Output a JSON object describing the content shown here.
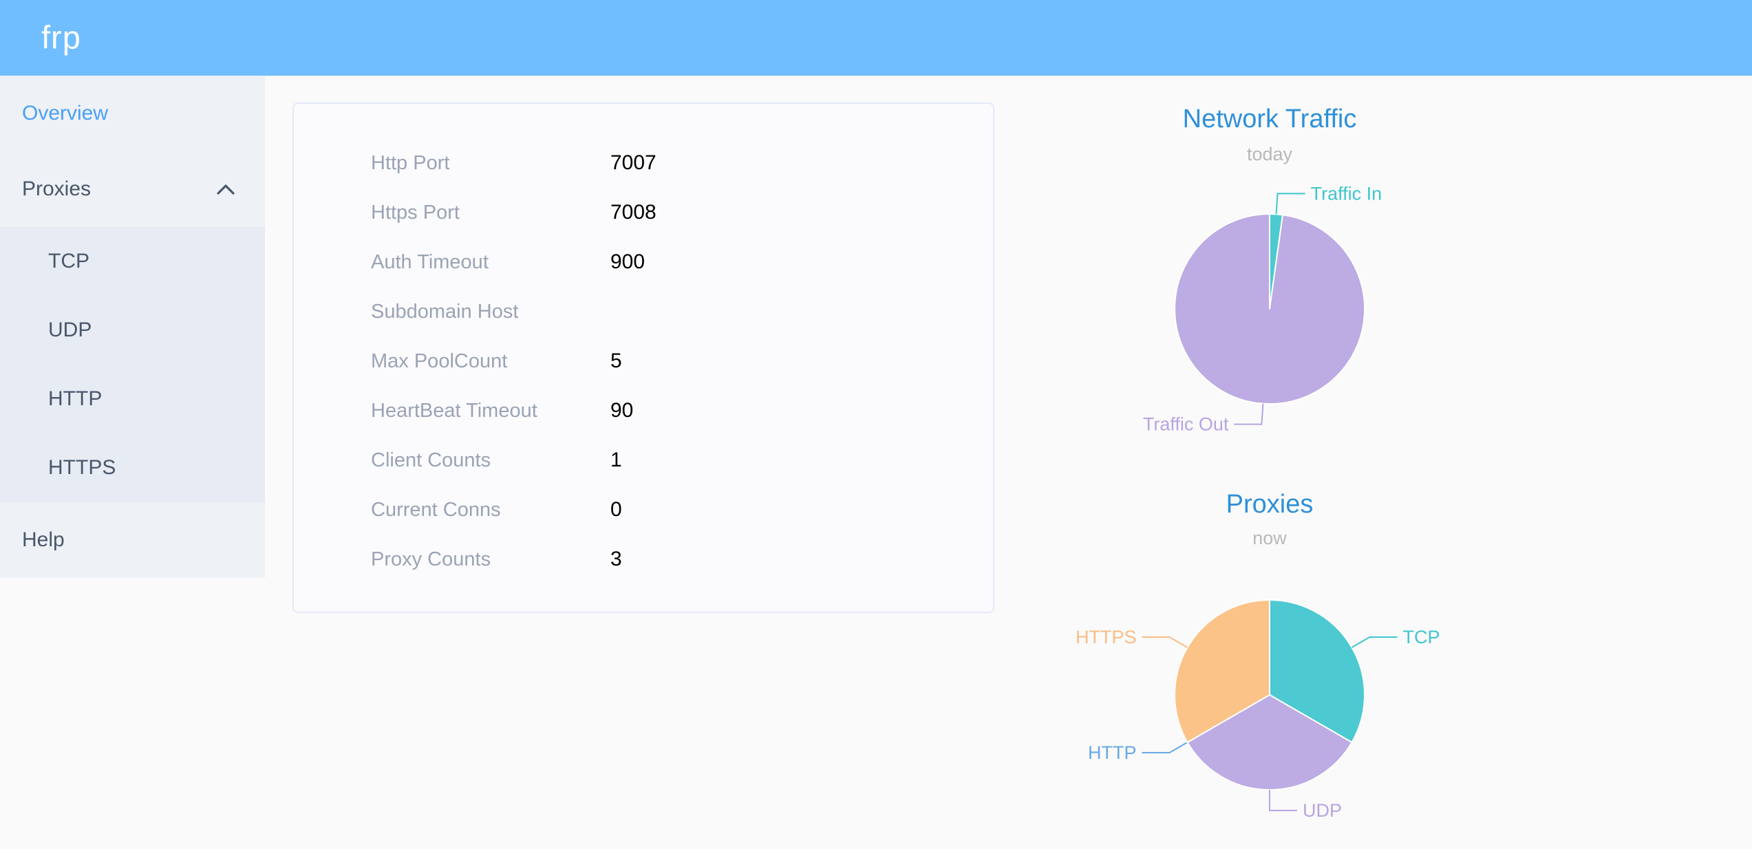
{
  "header": {
    "logo": "frp",
    "background_color": "#70bdff"
  },
  "sidebar": {
    "items": [
      {
        "label": "Overview",
        "active": true
      },
      {
        "label": "Proxies",
        "expanded": true,
        "children": [
          {
            "label": "TCP"
          },
          {
            "label": "UDP"
          },
          {
            "label": "HTTP"
          },
          {
            "label": "HTTPS"
          }
        ]
      },
      {
        "label": "Help",
        "active": false
      }
    ],
    "active_color": "#4aa0f6",
    "text_color": "#48576a"
  },
  "overview_card": {
    "rows": [
      {
        "label": "Http Port",
        "value": "7007"
      },
      {
        "label": "Https Port",
        "value": "7008"
      },
      {
        "label": "Auth Timeout",
        "value": "900"
      },
      {
        "label": "Subdomain Host",
        "value": ""
      },
      {
        "label": "Max PoolCount",
        "value": "5"
      },
      {
        "label": "HeartBeat Timeout",
        "value": "90"
      },
      {
        "label": "Client Counts",
        "value": "1"
      },
      {
        "label": "Current Conns",
        "value": "0"
      },
      {
        "label": "Proxy Counts",
        "value": "3"
      }
    ],
    "label_color": "#9aa3b5",
    "value_color": "#000000"
  },
  "chart_data": [
    {
      "type": "pie",
      "title": "Network Traffic",
      "subtitle": "today",
      "title_color": "#2e90d9",
      "subtitle_color": "#b8b8b8",
      "legend_position": "callout-labels",
      "value_unit": "percent (estimated from pixels; byte values not shown)",
      "slices": [
        {
          "name": "Traffic In",
          "value": 2.2,
          "color": "#4dc9d1",
          "label_color": "#3fc6cd"
        },
        {
          "name": "Traffic Out",
          "value": 97.8,
          "color": "#bdabe3",
          "label_color": "#b7a4e3"
        }
      ]
    },
    {
      "type": "pie",
      "title": "Proxies",
      "subtitle": "now",
      "title_color": "#2e90d9",
      "subtitle_color": "#b8b8b8",
      "legend_position": "callout-labels",
      "value_unit": "proxy count",
      "slices": [
        {
          "name": "TCP",
          "value": 1,
          "color": "#4dc9d1",
          "label_color": "#3fc6cd"
        },
        {
          "name": "UDP",
          "value": 1,
          "color": "#bdabe3",
          "label_color": "#b7a4e3"
        },
        {
          "name": "HTTP",
          "value": 0,
          "color": "#6cb2e9",
          "label_color": "#67a9e5"
        },
        {
          "name": "HTTPS",
          "value": 1,
          "color": "#fbc388",
          "label_color": "#f9bd84"
        }
      ]
    }
  ]
}
